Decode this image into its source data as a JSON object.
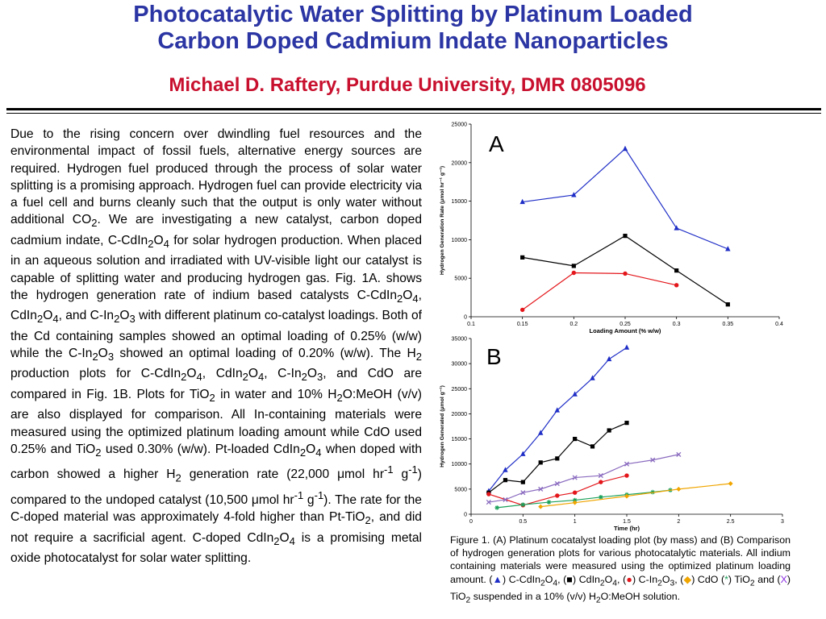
{
  "header": {
    "title_line1": "Photocatalytic Water Splitting by Platinum Loaded",
    "title_line2": "Carbon Doped Cadmium Indate Nanoparticles",
    "subtitle": "Michael D. Raftery, Purdue University,  DMR 0805096"
  },
  "body_text": "Due to the rising concern over dwindling fuel resources and the environmental impact of fossil fuels, alternative energy sources are required.  Hydrogen fuel produced through the process of solar water splitting is a promising approach. Hydrogen fuel can provide electricity via a fuel cell and burns cleanly such that the output is only water without additional CO<sub>2</sub>.  We are investigating a new catalyst, carbon doped cadmium indate, C-CdIn<sub>2</sub>O<sub>4</sub> for solar hydrogen production. When placed in an aqueous solution and irradiated with UV-visible light our catalyst is capable of splitting water and producing hydrogen gas. Fig. 1A. shows the hydrogen generation rate of indium based catalysts C-CdIn<sub>2</sub>O<sub>4</sub>, CdIn<sub>2</sub>O<sub>4</sub>, and C-In<sub>2</sub>O<sub>3</sub> with different platinum co-catalyst loadings. Both of the Cd containing samples showed an optimal loading of 0.25% (w/w) while the C-In<sub>2</sub>O<sub>3</sub> showed an optimal loading of 0.20% (w/w). The H<sub>2</sub> production plots for C-CdIn<sub>2</sub>O<sub>4</sub>, CdIn<sub>2</sub>O<sub>4</sub>, C-In<sub>2</sub>O<sub>3</sub>, and CdO are compared in Fig. 1B. Plots for TiO<sub>2</sub> in water and 10% H<sub>2</sub>O:MeOH (v/v) are also displayed for comparison. All In-containing materials were measured using the optimized platinum loading amount while CdO used 0.25% and TiO<sub>2</sub> used 0.30% (w/w). Pt-loaded CdIn<sub>2</sub>O<sub>4</sub> when doped with carbon showed a higher H<sub>2</sub> generation rate (22,000 μmol hr<sup>-1</sup> g<sup>-1</sup>) compared to the undoped catalyst (10,500 μmol hr<sup>-1</sup> g<sup>-1</sup>).  The rate for the C-doped material was approximately 4-fold higher than Pt-TiO<sub>2</sub>, and did not require a sacrificial agent. C-doped CdIn<sub>2</sub>O<sub>4</sub> is a promising metal oxide photocatalyst for solar water splitting.",
  "caption": "Figure 1. (A) Platinum cocatalyst loading plot (by mass) and (B) Comparison of hydrogen generation plots for various photocatalytic materials.  All indium containing materials were measured using the optimized platinum loading amount. (<span style=\"color:#1f2ec6\">▲</span>) C-CdIn<sub>2</sub>O<sub>4</sub>, (■) CdIn<sub>2</sub>O<sub>4</sub>, (<span style=\"color:#e3161b\">●</span>) C-In<sub>2</sub>O<sub>3</sub>, (<span style=\"color:#f0a500\">◆</span>) CdO (<span style=\"color:#1aa05a\">*</span>) TiO<sub>2</sub> and (<span style=\"color:#8a2be2\">X</span>) TiO<sub>2</sub> suspended in a 10% (v/v) H<sub>2</sub>O:MeOH solution.",
  "colors": {
    "title": "#2b35a3",
    "subtitle": "#c8102e",
    "blue": "#1f2ec6",
    "black": "#000000",
    "red": "#e3161b",
    "orange": "#f0a500",
    "green": "#1aa05a",
    "purple": "#8a6bbf"
  },
  "chart_data": [
    {
      "panel_label": "A",
      "type": "line",
      "xlabel": "Loading Amount (% w/w)",
      "ylabel": "Hydrogen Generation Rate (μmol hr⁻¹ g⁻¹)",
      "xlim": [
        0.1,
        0.4
      ],
      "ylim": [
        0,
        25000
      ],
      "xticks": [
        "0.1",
        "0.15",
        "0.2",
        "0.25",
        "0.3",
        "0.35",
        "0.4"
      ],
      "yticks": [
        "0",
        "5000",
        "10000",
        "15000",
        "20000",
        "25000"
      ],
      "series": [
        {
          "marker": "triangle",
          "color": "#1f2ec6",
          "x": [
            0.15,
            0.2,
            0.25,
            0.3,
            0.35
          ],
          "y": [
            14900,
            15800,
            21800,
            11500,
            8800
          ]
        },
        {
          "marker": "square",
          "color": "#000000",
          "x": [
            0.15,
            0.2,
            0.25,
            0.3,
            0.35
          ],
          "y": [
            7700,
            6600,
            10500,
            6000,
            1600
          ]
        },
        {
          "marker": "circle",
          "color": "#e3161b",
          "x": [
            0.15,
            0.2,
            0.25,
            0.3
          ],
          "y": [
            900,
            5700,
            5600,
            4100
          ]
        }
      ]
    },
    {
      "panel_label": "B",
      "type": "line",
      "xlabel": "Time (hr)",
      "ylabel": "Hydrogen Generated (μmol g⁻¹)",
      "xlim": [
        0,
        3
      ],
      "ylim": [
        0,
        35000
      ],
      "xticks": [
        "0",
        "0.5",
        "1",
        "1.5",
        "2",
        "2.5",
        "3"
      ],
      "yticks": [
        "0",
        "5000",
        "10000",
        "15000",
        "20000",
        "25000",
        "30000",
        "35000"
      ],
      "series": [
        {
          "marker": "triangle",
          "color": "#1f2ec6",
          "x": [
            0.17,
            0.33,
            0.5,
            0.67,
            0.83,
            1.0,
            1.17,
            1.33,
            1.5
          ],
          "y": [
            4600,
            8800,
            12000,
            16200,
            20700,
            23900,
            27100,
            30900,
            33200
          ]
        },
        {
          "marker": "square",
          "color": "#000000",
          "x": [
            0.17,
            0.33,
            0.5,
            0.67,
            0.83,
            1.0,
            1.17,
            1.33,
            1.5
          ],
          "y": [
            4300,
            6800,
            6400,
            10300,
            11100,
            15000,
            13500,
            16700,
            18200
          ]
        },
        {
          "marker": "circle",
          "color": "#e3161b",
          "x": [
            0.17,
            0.5,
            0.83,
            1.0,
            1.25,
            1.5
          ],
          "y": [
            4000,
            1800,
            3700,
            4300,
            6400,
            7700
          ]
        },
        {
          "marker": "x",
          "color": "#8a6bbf",
          "x": [
            0.17,
            0.33,
            0.5,
            0.67,
            0.83,
            1.0,
            1.25,
            1.5,
            1.75,
            2.0
          ],
          "y": [
            2400,
            2900,
            4300,
            5000,
            6100,
            7300,
            7700,
            10000,
            10800,
            11900
          ]
        },
        {
          "marker": "star",
          "color": "#1aa05a",
          "x": [
            0.25,
            0.5,
            0.75,
            1.0,
            1.25,
            1.5,
            1.75,
            1.92
          ],
          "y": [
            1300,
            1900,
            2400,
            2800,
            3400,
            3900,
            4400,
            4800
          ]
        },
        {
          "marker": "diamond",
          "color": "#f0a500",
          "x": [
            0.67,
            1.0,
            1.5,
            2.0,
            2.5
          ],
          "y": [
            1500,
            2300,
            3600,
            5000,
            6100
          ]
        }
      ]
    }
  ]
}
